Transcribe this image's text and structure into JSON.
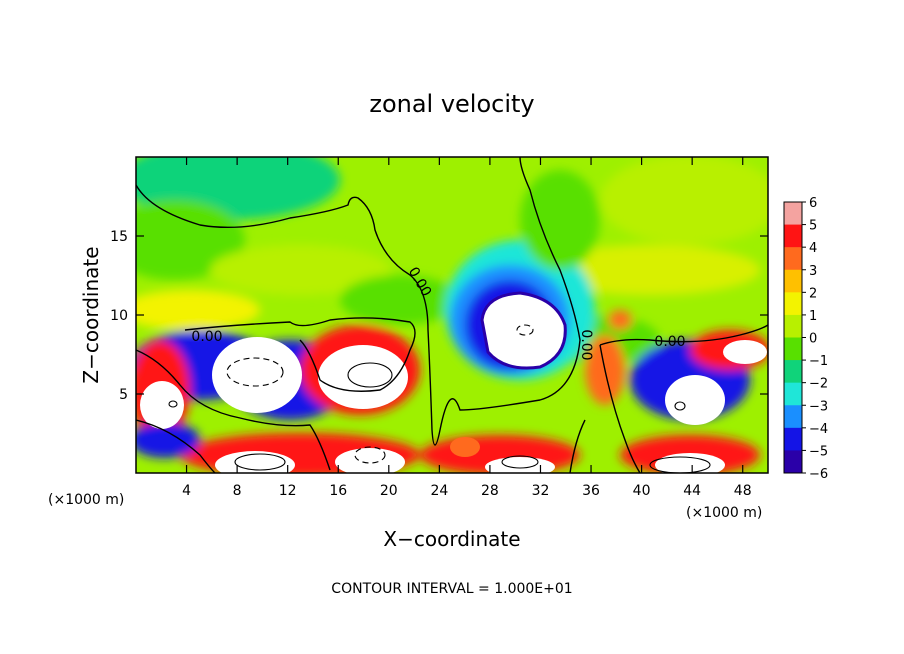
{
  "chart_data": {
    "type": "heatmap",
    "title": "zonal velocity",
    "xlabel": "X−coordinate",
    "ylabel": "Z−coordinate",
    "x_scale_note": "(×1000 m)",
    "y_scale_note": "(×1000 m)",
    "footer": "CONTOUR INTERVAL = 1.000E+01",
    "xlim": [
      0,
      50
    ],
    "ylim": [
      0,
      20
    ],
    "x_ticks": [
      4,
      8,
      12,
      16,
      20,
      24,
      28,
      32,
      36,
      40,
      44,
      48
    ],
    "y_ticks": [
      5,
      10,
      15
    ],
    "colorbar": {
      "ticks": [
        "6",
        "5",
        "4",
        "3",
        "2",
        "1",
        "0",
        "−1",
        "−2",
        "−3",
        "−4",
        "−5",
        "−6"
      ],
      "colors": [
        "#f4a3a0",
        "#ff1414",
        "#ff6a1e",
        "#ffc000",
        "#f3f300",
        "#b8f000",
        "#58e000",
        "#10d37a",
        "#1fe6d8",
        "#1a8fff",
        "#1414e6",
        "#2a00a8"
      ],
      "range": [
        -6,
        6
      ]
    },
    "contour_labels": [
      "0.00",
      "0.00",
      "0.00",
      "0.00"
    ],
    "features": [
      {
        "kind": "max",
        "x": 18,
        "z": 6.3,
        "value": "> 6"
      },
      {
        "kind": "max",
        "x": 10,
        "z": 6.3,
        "value": "> 6"
      },
      {
        "kind": "min",
        "x": 30,
        "z": 9.0,
        "value": "< -6"
      },
      {
        "kind": "min",
        "x": 43,
        "z": 4.2,
        "value": "< -6"
      },
      {
        "kind": "max",
        "x": 36.5,
        "z": 6.8,
        "value": "4"
      },
      {
        "kind": "min",
        "x": 7,
        "z": 1.5,
        "value": "< -6"
      },
      {
        "kind": "max",
        "x": 20,
        "z": 1.2,
        "value": "> 6"
      }
    ],
    "grid": false
  }
}
